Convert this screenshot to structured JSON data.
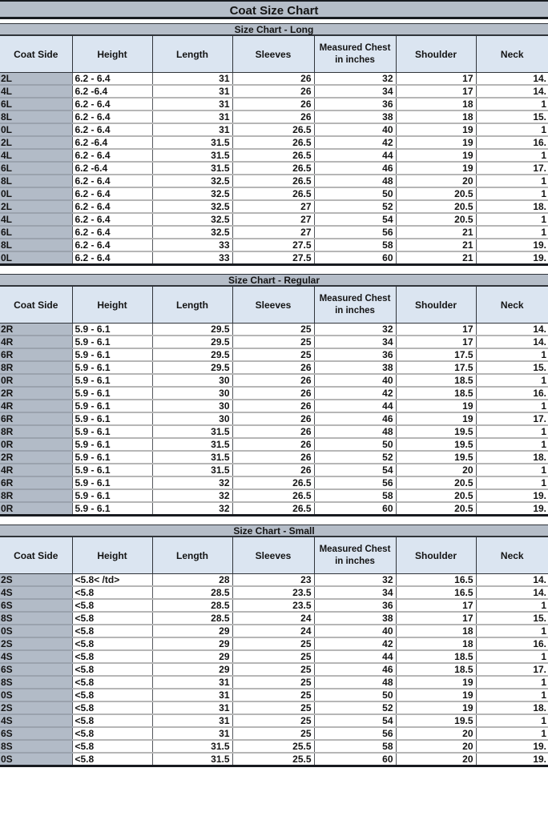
{
  "page": {
    "title": "Coat Size Chart"
  },
  "columns": [
    "Coat Side",
    "Height",
    "Length",
    "Sleeves",
    "Measured Chest in inches",
    "Shoulder",
    "Neck"
  ],
  "colors": {
    "bar_background": "#b5bdc8",
    "header_background": "#dbe5f1",
    "coat_side_column_background": "#b2bbc7",
    "dark_border": "#181b20"
  },
  "tables": [
    {
      "title": "Size Chart - Long",
      "rows": [
        [
          "2L",
          "6.2 - 6.4",
          "31",
          "26",
          "32",
          "17",
          "14."
        ],
        [
          "4L",
          "6.2 -6.4",
          "31",
          "26",
          "34",
          "17",
          "14."
        ],
        [
          "6L",
          "6.2 - 6.4",
          "31",
          "26",
          "36",
          "18",
          "1"
        ],
        [
          "8L",
          "6.2 - 6.4",
          "31",
          "26",
          "38",
          "18",
          "15."
        ],
        [
          "0L",
          "6.2 - 6.4",
          "31",
          "26.5",
          "40",
          "19",
          "1"
        ],
        [
          "2L",
          "6.2 -6.4",
          "31.5",
          "26.5",
          "42",
          "19",
          "16."
        ],
        [
          "4L",
          "6.2 - 6.4",
          "31.5",
          "26.5",
          "44",
          "19",
          "1"
        ],
        [
          "6L",
          "6.2 -6.4",
          "31.5",
          "26.5",
          "46",
          "19",
          "17."
        ],
        [
          "8L",
          "6.2 - 6.4",
          "32.5",
          "26.5",
          "48",
          "20",
          "1"
        ],
        [
          "0L",
          "6.2 - 6.4",
          "32.5",
          "26.5",
          "50",
          "20.5",
          "1"
        ],
        [
          "2L",
          "6.2 - 6.4",
          "32.5",
          "27",
          "52",
          "20.5",
          "18."
        ],
        [
          "4L",
          "6.2 - 6.4",
          "32.5",
          "27",
          "54",
          "20.5",
          "1"
        ],
        [
          "6L",
          "6.2 - 6.4",
          "32.5",
          "27",
          "56",
          "21",
          "1"
        ],
        [
          "8L",
          "6.2 - 6.4",
          "33",
          "27.5",
          "58",
          "21",
          "19."
        ],
        [
          "0L",
          "6.2 - 6.4",
          "33",
          "27.5",
          "60",
          "21",
          "19."
        ]
      ]
    },
    {
      "title": "Size Chart - Regular",
      "rows": [
        [
          "2R",
          "5.9 - 6.1",
          "29.5",
          "25",
          "32",
          "17",
          "14."
        ],
        [
          "4R",
          "5.9 - 6.1",
          "29.5",
          "25",
          "34",
          "17",
          "14."
        ],
        [
          "6R",
          "5.9 - 6.1",
          "29.5",
          "25",
          "36",
          "17.5",
          "1"
        ],
        [
          "8R",
          "5.9 - 6.1",
          "29.5",
          "26",
          "38",
          "17.5",
          "15."
        ],
        [
          "0R",
          "5.9 - 6.1",
          "30",
          "26",
          "40",
          "18.5",
          "1"
        ],
        [
          "2R",
          "5.9 - 6.1",
          "30",
          "26",
          "42",
          "18.5",
          "16."
        ],
        [
          "4R",
          "5.9 - 6.1",
          "30",
          "26",
          "44",
          "19",
          "1"
        ],
        [
          "6R",
          "5.9 - 6.1",
          "30",
          "26",
          "46",
          "19",
          "17."
        ],
        [
          "8R",
          "5.9 - 6.1",
          "31.5",
          "26",
          "48",
          "19.5",
          "1"
        ],
        [
          "0R",
          "5.9 - 6.1",
          "31.5",
          "26",
          "50",
          "19.5",
          "1"
        ],
        [
          "2R",
          "5.9 - 6.1",
          "31.5",
          "26",
          "52",
          "19.5",
          "18."
        ],
        [
          "4R",
          "5.9 - 6.1",
          "31.5",
          "26",
          "54",
          "20",
          "1"
        ],
        [
          "6R",
          "5.9 - 6.1",
          "32",
          "26.5",
          "56",
          "20.5",
          "1"
        ],
        [
          "8R",
          "5.9 - 6.1",
          "32",
          "26.5",
          "58",
          "20.5",
          "19."
        ],
        [
          "0R",
          "5.9 - 6.1",
          "32",
          "26.5",
          "60",
          "20.5",
          "19."
        ]
      ]
    },
    {
      "title": "Size Chart - Small",
      "rows": [
        [
          "2S",
          "<5.8< /td>",
          "28",
          "23",
          "32",
          "16.5",
          "14."
        ],
        [
          "4S",
          "<5.8",
          "28.5",
          "23.5",
          "34",
          "16.5",
          "14."
        ],
        [
          "6S",
          "<5.8",
          "28.5",
          "23.5",
          "36",
          "17",
          "1"
        ],
        [
          "8S",
          "<5.8",
          "28.5",
          "24",
          "38",
          "17",
          "15."
        ],
        [
          "0S",
          "<5.8",
          "29",
          "24",
          "40",
          "18",
          "1"
        ],
        [
          "2S",
          "<5.8",
          "29",
          "25",
          "42",
          "18",
          "16."
        ],
        [
          "4S",
          "<5.8",
          "29",
          "25",
          "44",
          "18.5",
          "1"
        ],
        [
          "6S",
          "<5.8",
          "29",
          "25",
          "46",
          "18.5",
          "17."
        ],
        [
          "8S",
          "<5.8",
          "31",
          "25",
          "48",
          "19",
          "1"
        ],
        [
          "0S",
          "<5.8",
          "31",
          "25",
          "50",
          "19",
          "1"
        ],
        [
          "2S",
          "<5.8",
          "31",
          "25",
          "52",
          "19",
          "18."
        ],
        [
          "4S",
          "<5.8",
          "31",
          "25",
          "54",
          "19.5",
          "1"
        ],
        [
          "6S",
          "<5.8",
          "31",
          "25",
          "56",
          "20",
          "1"
        ],
        [
          "8S",
          "<5.8",
          "31.5",
          "25.5",
          "58",
          "20",
          "19."
        ],
        [
          "0S",
          "<5.8",
          "31.5",
          "25.5",
          "60",
          "20",
          "19."
        ]
      ]
    }
  ]
}
